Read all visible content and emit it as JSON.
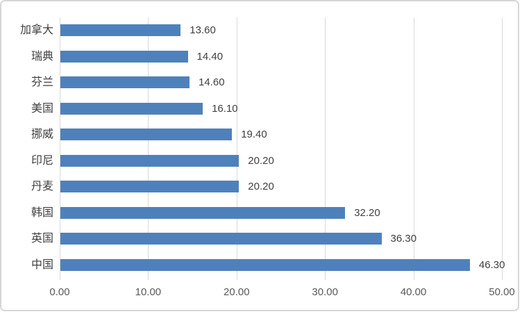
{
  "chart_data": {
    "type": "bar",
    "orientation": "horizontal",
    "title": "",
    "xlabel": "",
    "ylabel": "",
    "categories": [
      "加拿大",
      "瑞典",
      "芬兰",
      "美国",
      "挪威",
      "印尼",
      "丹麦",
      "韩国",
      "英国",
      "中国"
    ],
    "values": [
      13.6,
      14.4,
      14.6,
      16.1,
      19.4,
      20.2,
      20.2,
      32.2,
      36.3,
      46.3
    ],
    "value_labels": [
      "13.60",
      "14.40",
      "14.60",
      "16.10",
      "19.40",
      "20.20",
      "20.20",
      "32.20",
      "36.30",
      "46.30"
    ],
    "xlim": [
      0,
      50
    ],
    "x_ticks": [
      {
        "value": 0,
        "label": "0.00"
      },
      {
        "value": 10,
        "label": "10.00"
      },
      {
        "value": 20,
        "label": "20.00"
      },
      {
        "value": 30,
        "label": "30.00"
      },
      {
        "value": 40,
        "label": "40.00"
      },
      {
        "value": 50,
        "label": "50.00"
      }
    ],
    "grid": true,
    "legend": "none",
    "data_label_position": "outside-end"
  },
  "colors": {
    "bar": "#4e81bc",
    "gridline": "#d9d9d9",
    "axis_line": "#d9d9d9",
    "label_text": "#404040",
    "axis_text": "#595959",
    "background": "#ffffff",
    "border": "#d6d6d6"
  }
}
